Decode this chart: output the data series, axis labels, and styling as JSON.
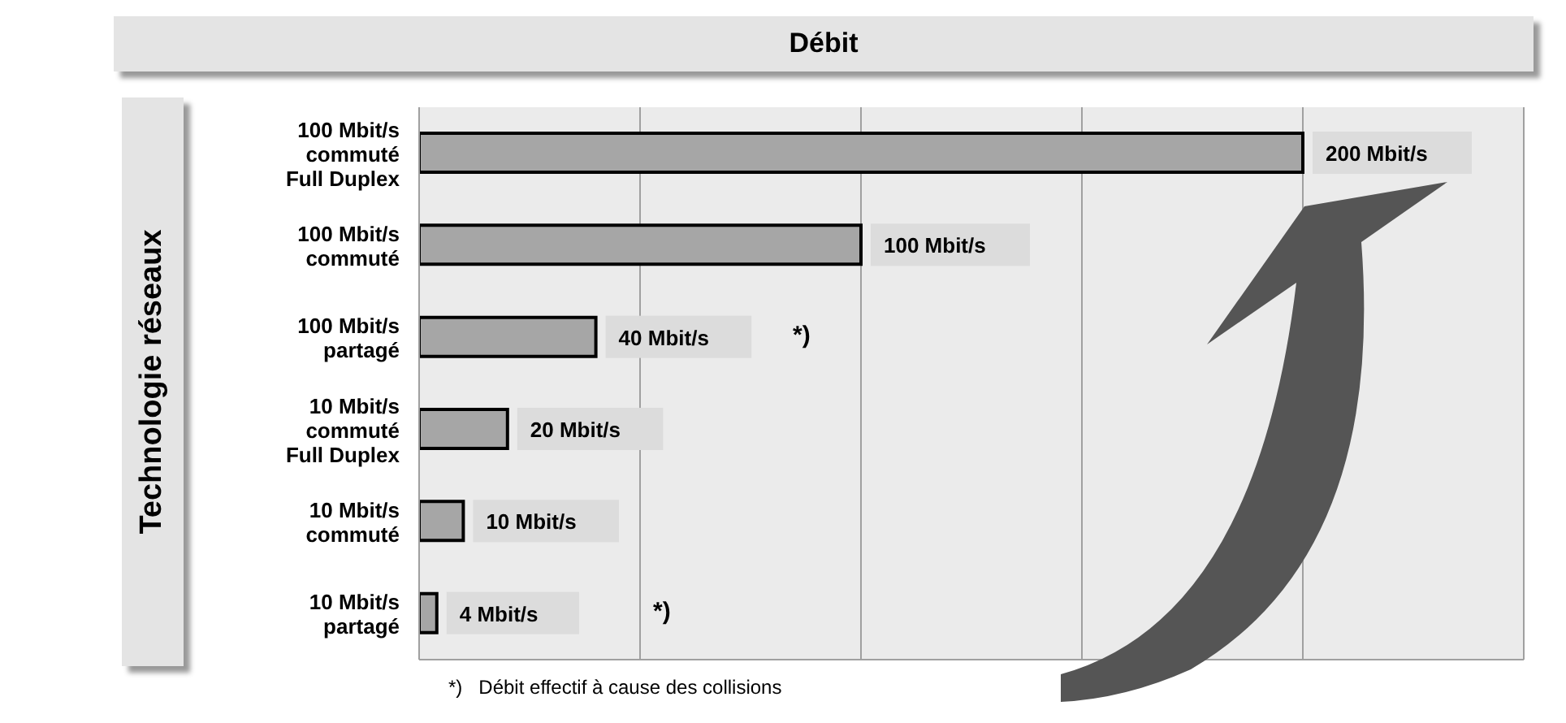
{
  "chart_data": {
    "type": "bar",
    "orientation": "horizontal",
    "title": "Débit",
    "ylabel": "Technologie réseaux",
    "categories": [
      "100 Mbit/s\ncommuté\nFull Duplex",
      "100 Mbit/s\ncommuté",
      "100 Mbit/s\npartagé",
      "10 Mbit/s\ncommuté\nFull Duplex",
      "10 Mbit/s\ncommuté",
      "10 Mbit/s\npartagé"
    ],
    "values": [
      200,
      100,
      40,
      20,
      10,
      4
    ],
    "value_labels": [
      "200 Mbit/s",
      "100 Mbit/s",
      "40 Mbit/s",
      "20 Mbit/s",
      "10 Mbit/s",
      "4 Mbit/s"
    ],
    "color": "#a6a6a6",
    "tick_labels": "y",
    "grid": "x",
    "legend": false,
    "annotations": [
      "*)",
      "*)",
      "*)   Débit effectif à cause des collisions"
    ]
  }
}
